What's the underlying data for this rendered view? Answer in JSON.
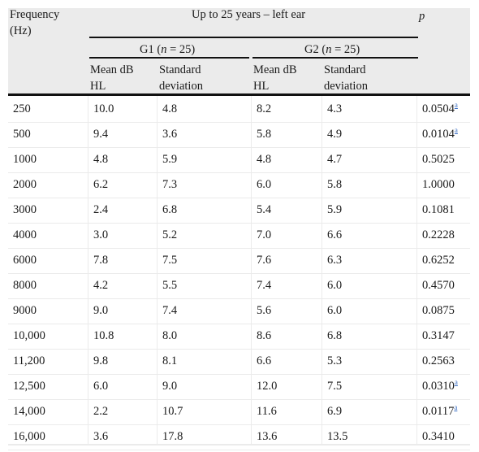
{
  "header": {
    "freq_line1": "Frequency",
    "freq_line2": "(Hz)",
    "span_title": "Up to 25 years – left ear",
    "p_label": "p",
    "g1_prefix": "G1 (",
    "g1_n": "n",
    "g1_suffix": " = 25)",
    "g2_prefix": "G2 (",
    "g2_n": "n",
    "g2_suffix": " = 25)",
    "mean_line1": "Mean dB",
    "mean_line2": "HL",
    "sd_line1": "Standard",
    "sd_line2": "deviation"
  },
  "rows": [
    {
      "freq": "250",
      "g1_mean": "10.0",
      "g1_sd": "4.8",
      "g2_mean": "8.2",
      "g2_sd": "4.3",
      "p": "0.0504",
      "note": "a"
    },
    {
      "freq": "500",
      "g1_mean": "9.4",
      "g1_sd": "3.6",
      "g2_mean": "5.8",
      "g2_sd": "4.9",
      "p": "0.0104",
      "note": "a"
    },
    {
      "freq": "1000",
      "g1_mean": "4.8",
      "g1_sd": "5.9",
      "g2_mean": "4.8",
      "g2_sd": "4.7",
      "p": "0.5025",
      "note": ""
    },
    {
      "freq": "2000",
      "g1_mean": "6.2",
      "g1_sd": "7.3",
      "g2_mean": "6.0",
      "g2_sd": "5.8",
      "p": "1.0000",
      "note": ""
    },
    {
      "freq": "3000",
      "g1_mean": "2.4",
      "g1_sd": "6.8",
      "g2_mean": "5.4",
      "g2_sd": "5.9",
      "p": "0.1081",
      "note": ""
    },
    {
      "freq": "4000",
      "g1_mean": "3.0",
      "g1_sd": "5.2",
      "g2_mean": "7.0",
      "g2_sd": "6.6",
      "p": "0.2228",
      "note": ""
    },
    {
      "freq": "6000",
      "g1_mean": "7.8",
      "g1_sd": "7.5",
      "g2_mean": "7.6",
      "g2_sd": "6.3",
      "p": "0.6252",
      "note": ""
    },
    {
      "freq": "8000",
      "g1_mean": "4.2",
      "g1_sd": "5.5",
      "g2_mean": "7.4",
      "g2_sd": "6.0",
      "p": "0.4570",
      "note": ""
    },
    {
      "freq": "9000",
      "g1_mean": "9.0",
      "g1_sd": "7.4",
      "g2_mean": "5.6",
      "g2_sd": "6.0",
      "p": "0.0875",
      "note": ""
    },
    {
      "freq": "10,000",
      "g1_mean": "10.8",
      "g1_sd": "8.0",
      "g2_mean": "8.6",
      "g2_sd": "6.8",
      "p": "0.3147",
      "note": ""
    },
    {
      "freq": "11,200",
      "g1_mean": "9.8",
      "g1_sd": "8.1",
      "g2_mean": "6.6",
      "g2_sd": "5.3",
      "p": "0.2563",
      "note": ""
    },
    {
      "freq": "12,500",
      "g1_mean": "6.0",
      "g1_sd": "9.0",
      "g2_mean": "12.0",
      "g2_sd": "7.5",
      "p": "0.0310",
      "note": "a"
    },
    {
      "freq": "14,000",
      "g1_mean": "2.2",
      "g1_sd": "10.7",
      "g2_mean": "11.6",
      "g2_sd": "6.9",
      "p": "0.0117",
      "note": "a"
    },
    {
      "freq": "16,000",
      "g1_mean": "3.6",
      "g1_sd": "17.8",
      "g2_mean": "13.6",
      "g2_sd": "13.5",
      "p": "0.3410",
      "note": ""
    }
  ]
}
